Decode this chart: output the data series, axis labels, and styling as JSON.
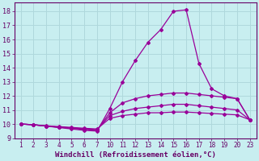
{
  "xlabel": "Windchill (Refroidissement éolien,°C)",
  "bg_color": "#c8eef0",
  "grid_color": "#afd8dc",
  "line_color": "#990099",
  "text_color": "#660066",
  "ylim": [
    9.0,
    18.6
  ],
  "yticks": [
    9,
    10,
    11,
    12,
    13,
    14,
    15,
    16,
    17,
    18
  ],
  "xlabels": [
    "1",
    "2",
    "3",
    "4",
    "5",
    "6",
    "7",
    "10",
    "11",
    "12",
    "13",
    "14",
    "15",
    "16",
    "17",
    "18",
    "19",
    "20",
    "23"
  ],
  "lines": [
    {
      "y": [
        10.0,
        9.95,
        9.85,
        9.75,
        9.65,
        9.55,
        9.5,
        11.1,
        13.0,
        14.5,
        15.8,
        16.7,
        18.0,
        18.1,
        14.3,
        12.5,
        12.0,
        11.8,
        10.3
      ]
    },
    {
      "y": [
        10.0,
        9.95,
        9.85,
        9.78,
        9.7,
        9.62,
        9.55,
        10.8,
        11.5,
        11.8,
        12.0,
        12.1,
        12.2,
        12.2,
        12.1,
        12.0,
        11.9,
        11.8,
        10.3
      ]
    },
    {
      "y": [
        10.0,
        9.95,
        9.85,
        9.78,
        9.72,
        9.66,
        9.6,
        10.6,
        10.9,
        11.1,
        11.2,
        11.3,
        11.4,
        11.4,
        11.3,
        11.2,
        11.1,
        11.0,
        10.3
      ]
    },
    {
      "y": [
        10.0,
        9.95,
        9.88,
        9.82,
        9.76,
        9.7,
        9.65,
        10.4,
        10.6,
        10.7,
        10.8,
        10.8,
        10.85,
        10.85,
        10.8,
        10.75,
        10.7,
        10.65,
        10.3
      ]
    }
  ]
}
